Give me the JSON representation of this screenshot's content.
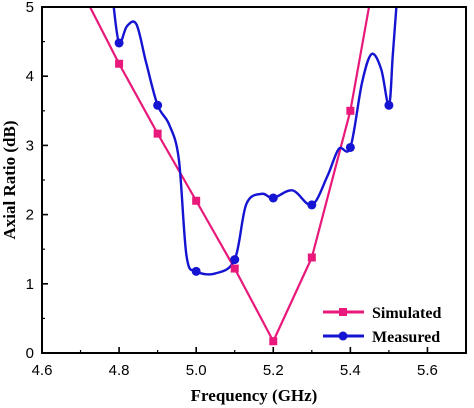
{
  "chart_data": {
    "type": "line",
    "title": "",
    "xlabel": "Frequency (GHz)",
    "ylabel": "Axial Ratio (dB)",
    "xlim": [
      4.6,
      5.7
    ],
    "ylim": [
      0,
      5
    ],
    "x_ticks": [
      4.6,
      4.8,
      5.0,
      5.2,
      5.4,
      5.6
    ],
    "x_tick_labels": [
      "4.6",
      "4.8",
      "5.0",
      "5.2",
      "5.4",
      "5.6"
    ],
    "y_ticks": [
      0,
      1,
      2,
      3,
      4,
      5
    ],
    "y_tick_labels": [
      "0",
      "1",
      "2",
      "3",
      "4",
      "5"
    ],
    "grid": false,
    "legend_position": "bottom-right",
    "series": [
      {
        "name": "Simulated",
        "color": "#e8197a",
        "marker": "square",
        "markers": [
          {
            "x": 4.8,
            "y": 4.18
          },
          {
            "x": 4.9,
            "y": 3.17
          },
          {
            "x": 5.0,
            "y": 2.2
          },
          {
            "x": 5.1,
            "y": 1.22
          },
          {
            "x": 5.2,
            "y": 0.17
          },
          {
            "x": 5.3,
            "y": 1.38
          },
          {
            "x": 5.4,
            "y": 3.5
          }
        ],
        "curve": [
          {
            "x": 4.72,
            "y": 5.05
          },
          {
            "x": 4.8,
            "y": 4.18
          },
          {
            "x": 4.9,
            "y": 3.17
          },
          {
            "x": 5.0,
            "y": 2.2
          },
          {
            "x": 5.1,
            "y": 1.22
          },
          {
            "x": 5.2,
            "y": 0.17
          },
          {
            "x": 5.3,
            "y": 1.38
          },
          {
            "x": 5.4,
            "y": 3.5
          },
          {
            "x": 5.45,
            "y": 5.05
          }
        ]
      },
      {
        "name": "Measured",
        "color": "#1414d2",
        "marker": "circle",
        "markers": [
          {
            "x": 4.8,
            "y": 4.48
          },
          {
            "x": 4.9,
            "y": 3.58
          },
          {
            "x": 5.0,
            "y": 1.18
          },
          {
            "x": 5.1,
            "y": 1.35
          },
          {
            "x": 5.2,
            "y": 2.24
          },
          {
            "x": 5.3,
            "y": 2.14
          },
          {
            "x": 5.4,
            "y": 2.97
          },
          {
            "x": 5.5,
            "y": 3.58
          }
        ],
        "curve": [
          {
            "x": 4.785,
            "y": 5.05
          },
          {
            "x": 4.8,
            "y": 4.48
          },
          {
            "x": 4.82,
            "y": 4.72
          },
          {
            "x": 4.845,
            "y": 4.75
          },
          {
            "x": 4.87,
            "y": 4.2
          },
          {
            "x": 4.9,
            "y": 3.58
          },
          {
            "x": 4.93,
            "y": 3.3
          },
          {
            "x": 4.955,
            "y": 2.8
          },
          {
            "x": 4.975,
            "y": 1.4
          },
          {
            "x": 5.0,
            "y": 1.18
          },
          {
            "x": 5.05,
            "y": 1.15
          },
          {
            "x": 5.1,
            "y": 1.35
          },
          {
            "x": 5.13,
            "y": 2.15
          },
          {
            "x": 5.17,
            "y": 2.3
          },
          {
            "x": 5.2,
            "y": 2.24
          },
          {
            "x": 5.25,
            "y": 2.35
          },
          {
            "x": 5.3,
            "y": 2.14
          },
          {
            "x": 5.34,
            "y": 2.55
          },
          {
            "x": 5.37,
            "y": 2.95
          },
          {
            "x": 5.4,
            "y": 2.97
          },
          {
            "x": 5.43,
            "y": 3.9
          },
          {
            "x": 5.455,
            "y": 4.32
          },
          {
            "x": 5.48,
            "y": 4.1
          },
          {
            "x": 5.5,
            "y": 3.58
          },
          {
            "x": 5.51,
            "y": 4.3
          },
          {
            "x": 5.52,
            "y": 5.05
          }
        ]
      }
    ]
  }
}
